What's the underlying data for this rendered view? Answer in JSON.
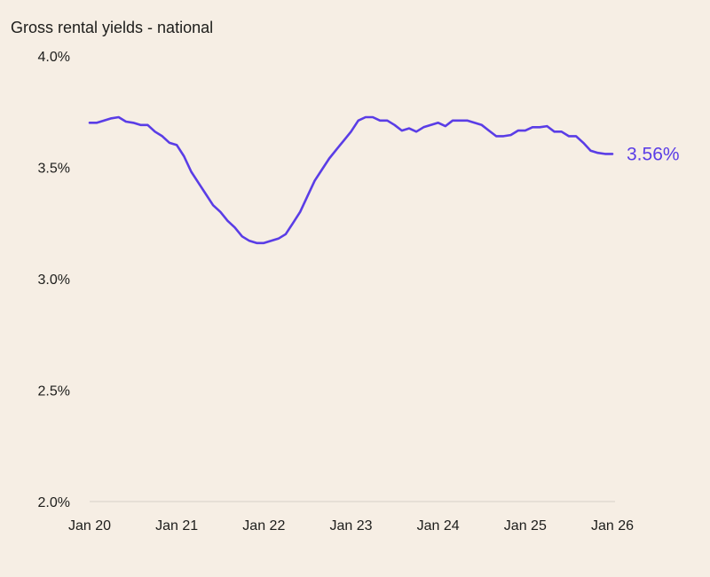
{
  "chart_data": {
    "type": "line",
    "title": "Gross rental yields - national",
    "xlabel": "",
    "ylabel": "",
    "ylim": [
      2.0,
      4.0
    ],
    "yticks": [
      "2.0%",
      "2.5%",
      "3.0%",
      "3.5%",
      "4.0%"
    ],
    "ytick_values": [
      2.0,
      2.5,
      3.0,
      3.5,
      4.0
    ],
    "xticks": [
      "Jan 20",
      "Jan 21",
      "Jan 22",
      "Jan 23",
      "Jan 24",
      "Jan 25",
      "Jan 26"
    ],
    "xtick_values": [
      "2020-01",
      "2021-01",
      "2022-01",
      "2023-01",
      "2024-01",
      "2025-01",
      "2026-01"
    ],
    "xlim": [
      "2020-01",
      "2026-01"
    ],
    "grid": false,
    "end_label": "3.56%",
    "line_color": "#5a3de6",
    "x_start": "2020-01",
    "frequency": "monthly",
    "values": [
      3.7,
      3.7,
      3.71,
      3.72,
      3.725,
      3.705,
      3.7,
      3.69,
      3.69,
      3.66,
      3.64,
      3.61,
      3.6,
      3.55,
      3.48,
      3.43,
      3.38,
      3.33,
      3.3,
      3.26,
      3.23,
      3.19,
      3.17,
      3.16,
      3.16,
      3.17,
      3.18,
      3.2,
      3.25,
      3.3,
      3.37,
      3.44,
      3.49,
      3.54,
      3.58,
      3.62,
      3.66,
      3.71,
      3.725,
      3.725,
      3.71,
      3.71,
      3.69,
      3.665,
      3.675,
      3.66,
      3.68,
      3.69,
      3.7,
      3.685,
      3.71,
      3.71,
      3.71,
      3.7,
      3.69,
      3.665,
      3.64,
      3.64,
      3.645,
      3.665,
      3.665,
      3.68,
      3.68,
      3.685,
      3.66,
      3.66,
      3.64,
      3.64,
      3.61,
      3.575,
      3.565,
      3.56,
      3.56
    ]
  }
}
